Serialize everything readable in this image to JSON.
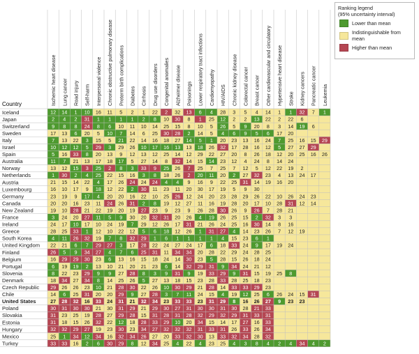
{
  "colors": {
    "lower": "#4e9a2f",
    "indist": "#f6e79b",
    "higher": "#b54652",
    "lower_text": "#ffffff",
    "indist_text": "#222222",
    "higher_text": "#ffffff"
  },
  "legend": {
    "title": "Ranking legend",
    "subtitle": "(95% uncertainty interval)",
    "items": [
      {
        "key": "L",
        "label": "Lower than mean"
      },
      {
        "key": "I",
        "label": "Indistinguishable from mean"
      },
      {
        "key": "H",
        "label": "Higher than mean"
      }
    ]
  },
  "chart_data": {
    "type": "heatmap",
    "row_header": "Country",
    "highlight_row": "United States",
    "columns": [
      "Ischemic heart disease",
      "Lung cancer",
      "Road injury",
      "Self-harm",
      "Interpersonal violence",
      "Chronic obstructive pulmonary disease",
      "Preterm birth complications",
      "Diabetes",
      "Cirrhosis",
      "Drug use disorders",
      "Congenital anomalies",
      "Alzheimer disease",
      "Poisonings",
      "Lower respiratory tract infections",
      "Cardiomyopathy",
      "HIV/AIDS",
      "Chronic kidney disease",
      "Colorectal cancer",
      "Breast cancer",
      "Other cardiovascular and circulatory",
      "Hypertensive heart disease",
      "Stroke",
      "Kidney cancers",
      "Pancreatic cancer",
      "Leukemia"
    ],
    "rows": [
      {
        "country": "Iceland",
        "ranks": [
          12,
          14,
          1,
          10,
          16,
          11,
          5,
          2,
          1,
          22,
          2,
          32,
          13,
          6,
          4,
          28,
          3,
          5,
          4,
          14,
          1,
          1,
          32,
          7,
          1
        ],
        "status": "LLLLIIIIIIHIHLLIIIIIILHIL"
      },
      {
        "country": "Japan",
        "ranks": [
          2,
          4,
          2,
          31,
          1,
          1,
          1,
          1,
          2,
          8,
          10,
          30,
          8,
          1,
          25,
          12,
          2,
          2,
          13,
          22,
          2,
          22,
          6,
          "",
          ""
        ],
        "status": "LLLHLLLLLLIHIHILIILIIIIII"
      },
      {
        "country": "Switzerland",
        "ranks": [
          9,
          8,
          8,
          24,
          8,
          6,
          10,
          11,
          10,
          14,
          25,
          15,
          8,
          10,
          5,
          26,
          5,
          9,
          20,
          8,
          3,
          14,
          19,
          6,
          ""
        ],
        "status": "LLLHLLIIIIIIIIILILIIIILII"
      },
      {
        "country": "Sweden",
        "ranks": [
          17,
          13,
          6,
          20,
          5,
          10,
          7,
          14,
          6,
          25,
          30,
          28,
          2,
          14,
          5,
          4,
          6,
          9,
          5,
          6,
          17,
          20,
          "",
          "",
          ""
        ],
        "status": "IILIILLIIIHHLIILLLLLIIIII"
      },
      {
        "country": "Italy",
        "ranks": [
          7,
          13,
          22,
          3,
          15,
          5,
          21,
          22,
          14,
          16,
          18,
          27,
          14,
          5,
          1,
          20,
          23,
          13,
          16,
          24,
          7,
          25,
          16,
          15,
          29
        ],
        "status": "LIILIILIIIIILLLIIIIILIIIH"
      },
      {
        "country": "Israel",
        "ranks": [
          10,
          12,
          12,
          5,
          29,
          3,
          29,
          26,
          10,
          17,
          16,
          13,
          13,
          18,
          26,
          32,
          17,
          28,
          16,
          12,
          5,
          27,
          27,
          29,
          ""
        ],
        "status": "LLLLHLIILLLLILIHIIIILIIHI"
      },
      {
        "country": "Spain",
        "ranks": [
          5,
          16,
          33,
          8,
          20,
          13,
          9,
          12,
          13,
          12,
          25,
          14,
          12,
          29,
          22,
          27,
          20,
          8,
          26,
          18,
          12,
          20,
          25,
          16,
          26
        ],
        "status": "LIHLIIIIIIIIIIIIIIIIIIIII"
      },
      {
        "country": "Australia",
        "ranks": [
          11,
          7,
          21,
          13,
          17,
          18,
          17,
          5,
          27,
          14,
          8,
          32,
          14,
          15,
          14,
          23,
          12,
          4,
          24,
          8,
          14,
          24,
          "",
          "",
          ""
        ],
        "status": "LLIIIILIIIIHIILIIIIIIIIII"
      },
      {
        "country": "Norway",
        "ranks": [
          13,
          12,
          15,
          3,
          25,
          2,
          8,
          3,
          33,
          9,
          25,
          26,
          7,
          25,
          7,
          25,
          7,
          12,
          5,
          12,
          22,
          19,
          2,
          "",
          ""
        ],
        "status": "IILHLHLLHHLIHIIIIIIIIIIII"
      },
      {
        "country": "Netherlands",
        "ranks": [
          1,
          30,
          2,
          4,
          25,
          22,
          15,
          16,
          3,
          8,
          18,
          26,
          2,
          20,
          11,
          20,
          2,
          27,
          32,
          23,
          4,
          13,
          24,
          17,
          ""
        ],
        "status": "LHLLLIIILLIIHLLILIHIIIIII"
      },
      {
        "country": "Austria",
        "ranks": [
          21,
          15,
          14,
          22,
          4,
          17,
          26,
          24,
          24,
          24,
          4,
          4,
          9,
          16,
          9,
          22,
          25,
          31,
          14,
          19,
          16,
          20,
          "",
          "",
          ""
        ],
        "status": "IIIILIIHIHLLIIIIIHIIIIIII"
      },
      {
        "country": "Luxembourg",
        "ranks": [
          16,
          10,
          17,
          9,
          18,
          12,
          22,
          2,
          30,
          11,
          23,
          11,
          20,
          30,
          17,
          19,
          5,
          9,
          30,
          "",
          "",
          "",
          "",
          "",
          ""
        ],
        "status": "IIIILIILHIIIIIIIIIIIIIIII"
      },
      {
        "country": "Germany",
        "ranks": [
          23,
          19,
          9,
          17,
          4,
          20,
          20,
          16,
          22,
          10,
          25,
          26,
          12,
          24,
          20,
          23,
          28,
          29,
          26,
          22,
          10,
          26,
          24,
          23,
          ""
        ],
        "status": "IIILLIIIIIIHIIIIIIIIIIIII"
      },
      {
        "country": "Canada",
        "ranks": [
          20,
          20,
          16,
          23,
          11,
          24,
          26,
          31,
          2,
          8,
          19,
          12,
          27,
          11,
          16,
          19,
          28,
          20,
          17,
          10,
          28,
          31,
          12,
          14,
          ""
        ],
        "status": "IIIIIHIHLLIIIIIIIIIIIHIII"
      },
      {
        "country": "New Zealand",
        "ranks": [
          19,
          10,
          28,
          21,
          22,
          19,
          20,
          19,
          27,
          23,
          9,
          23,
          9,
          26,
          28,
          30,
          26,
          9,
          26,
          7,
          28,
          21,
          "",
          "",
          ""
        ],
        "status": "IIHIIIIIHIIIIIIHIIHIIIIII"
      },
      {
        "country": "France",
        "ranks": [
          3,
          24,
          20,
          27,
          11,
          5,
          9,
          30,
          20,
          32,
          31,
          20,
          26,
          4,
          19,
          26,
          25,
          15,
          2,
          32,
          3,
          3,
          "",
          "",
          ""
        ],
        "status": "LIIHLLLIIHHIILLIIILHIIIII"
      },
      {
        "country": "Ireland",
        "ranks": [
          24,
          17,
          10,
          17,
          10,
          24,
          19,
          7,
          29,
          12,
          26,
          17,
          31,
          21,
          26,
          24,
          25,
          16,
          30,
          14,
          8,
          16,
          "",
          "",
          ""
        ],
        "status": "IILIIIILIIIIHIIIIIHIIIIII"
      },
      {
        "country": "Greece",
        "ranks": [
          28,
          25,
          33,
          1,
          12,
          10,
          22,
          12,
          5,
          6,
          18,
          12,
          26,
          1,
          31,
          27,
          4,
          14,
          23,
          26,
          7,
          12,
          19,
          "",
          ""
        ],
        "status": "IIHLIIIILLLIILHHLIIIIIIII"
      },
      {
        "country": "South Korea",
        "ranks": [
          4,
          11,
          26,
          32,
          19,
          7,
          8,
          32,
          29,
          1,
          6,
          1,
          1,
          1,
          1,
          4,
          15,
          23,
          6,
          1,
          "",
          "",
          "",
          "",
          ""
        ],
        "status": "LLHHILLHHLLLLLLLIILLIIIII"
      },
      {
        "country": "United Kingdom",
        "ranks": [
          22,
          21,
          6,
          7,
          29,
          27,
          3,
          17,
          28,
          22,
          24,
          27,
          24,
          17,
          6,
          18,
          33,
          24,
          9,
          17,
          19,
          24,
          "",
          "",
          ""
        ],
        "status": "IILLHHLIHIIIIILIHILIIIIII"
      },
      {
        "country": "Finland",
        "ranks": [
          26,
          5,
          9,
          34,
          27,
          4,
          7,
          6,
          25,
          31,
          11,
          34,
          34,
          20,
          28,
          22,
          29,
          24,
          28,
          25,
          "",
          "",
          "",
          "",
          ""
        ],
        "status": "HLLHHLLLHHIHHIIIIIIIIIIII"
      },
      {
        "country": "Belgium",
        "ranks": [
          16,
          29,
          29,
          30,
          23,
          6,
          13,
          16,
          15,
          18,
          24,
          14,
          30,
          23,
          5,
          28,
          15,
          26,
          18,
          24,
          "",
          "",
          "",
          "",
          ""
        ],
        "status": "IHHHILIIIIIIHILIIIIIIIIII"
      },
      {
        "country": "Portugal",
        "ranks": [
          6,
          19,
          19,
          2,
          13,
          10,
          21,
          20,
          21,
          23,
          6,
          14,
          32,
          29,
          31,
          9,
          34,
          24,
          21,
          12,
          "",
          "",
          "",
          "",
          ""
        ],
        "status": "LILLIIIIIILIHHHLHIIIIIIII"
      },
      {
        "country": "Slovenia",
        "ranks": [
          8,
          22,
          23,
          29,
          9,
          9,
          27,
          28,
          8,
          3,
          9,
          31,
          9,
          19,
          33,
          29,
          9,
          31,
          15,
          19,
          25,
          8,
          "",
          "",
          ""
        ],
        "status": "LIIHLLIHLLLHLIHHLHIIILIII"
      },
      {
        "country": "Denmark",
        "ranks": [
          18,
          34,
          27,
          34,
          8,
          14,
          25,
          26,
          5,
          27,
          13,
          18,
          15,
          23,
          28,
          33,
          28,
          25,
          18,
          23,
          "",
          "",
          "",
          "",
          ""
        ],
        "status": "IHIHLIIILIIIIIIHIIIIIIIII"
      },
      {
        "country": "Czech Republic",
        "ranks": [
          29,
          26,
          26,
          23,
          10,
          21,
          28,
          30,
          22,
          26,
          10,
          30,
          29,
          21,
          28,
          14,
          33,
          33,
          29,
          23,
          "",
          "",
          "",
          "",
          ""
        ],
        "status": "HIIILIHHIILHHIHIHHHIIIIII"
      },
      {
        "country": "Chile",
        "ranks": [
          14,
          6,
          25,
          31,
          20,
          20,
          29,
          9,
          27,
          28,
          3,
          7,
          11,
          24,
          15,
          4,
          19,
          12,
          25,
          6,
          26,
          24,
          15,
          31,
          ""
        ],
        "status": "ILIHIIHLIHLLLIILILILIIIHI"
      },
      {
        "country": "United States",
        "ranks": [
          27,
          28,
          32,
          16,
          33,
          24,
          31,
          21,
          32,
          34,
          23,
          33,
          33,
          23,
          31,
          29,
          8,
          16,
          26,
          27,
          9,
          23,
          23,
          "",
          ""
        ],
        "status": "IHHIHIHIHHIHHIHHLIIHLIIII"
      },
      {
        "country": "Poland",
        "ranks": [
          30,
          31,
          30,
          30,
          21,
          30,
          31,
          29,
          21,
          29,
          30,
          27,
          31,
          30,
          30,
          31,
          30,
          28,
          21,
          33,
          "",
          "",
          "",
          "",
          ""
        ],
        "status": "HHHHIIHHIHHHHHHHHIHHIIIII"
      },
      {
        "country": "Slovakia",
        "ranks": [
          31,
          23,
          25,
          19,
          28,
          27,
          29,
          28,
          15,
          31,
          28,
          31,
          28,
          32,
          29,
          32,
          29,
          31,
          33,
          31,
          "",
          "",
          "",
          "",
          ""
        ],
        "status": "HIIIHIHHIHHHHHHHHHHHIIIII"
      },
      {
        "country": "Estonia",
        "ranks": [
          31,
          18,
          15,
          26,
          32,
          22,
          12,
          18,
          28,
          33,
          29,
          10,
          20,
          34,
          15,
          14,
          17,
          27,
          16,
          33,
          "",
          "",
          "",
          "",
          ""
        ],
        "status": "HIIIHILIHHHLIHIIIHIHIIIII"
      },
      {
        "country": "Hungary",
        "ranks": [
          32,
          32,
          29,
          27,
          19,
          23,
          30,
          23,
          34,
          27,
          32,
          32,
          32,
          31,
          33,
          31,
          26,
          33,
          26,
          34,
          "",
          "",
          "",
          "",
          ""
        ],
        "status": "HHHHIIHIHHHHHHHHIHIHIIIII"
      },
      {
        "country": "Mexico",
        "ranks": [
          25,
          1,
          34,
          12,
          34,
          16,
          32,
          34,
          26,
          27,
          20,
          33,
          32,
          30,
          13,
          33,
          32,
          34,
          28,
          32,
          "",
          "",
          "",
          "",
          ""
        ],
        "status": "ILHLHIHHHIIHHHIHHHIHIIIII"
      },
      {
        "country": "Turkey",
        "ranks": [
          33,
          33,
          16,
          2,
          6,
          30,
          29,
          8,
          12,
          34,
          25,
          4,
          22,
          4,
          23,
          25,
          4,
          3,
          8,
          4,
          2,
          4,
          34,
          4,
          2
        ],
        "status": "HHILLHHLIHILILIILLLLLLHLL"
      }
    ]
  }
}
